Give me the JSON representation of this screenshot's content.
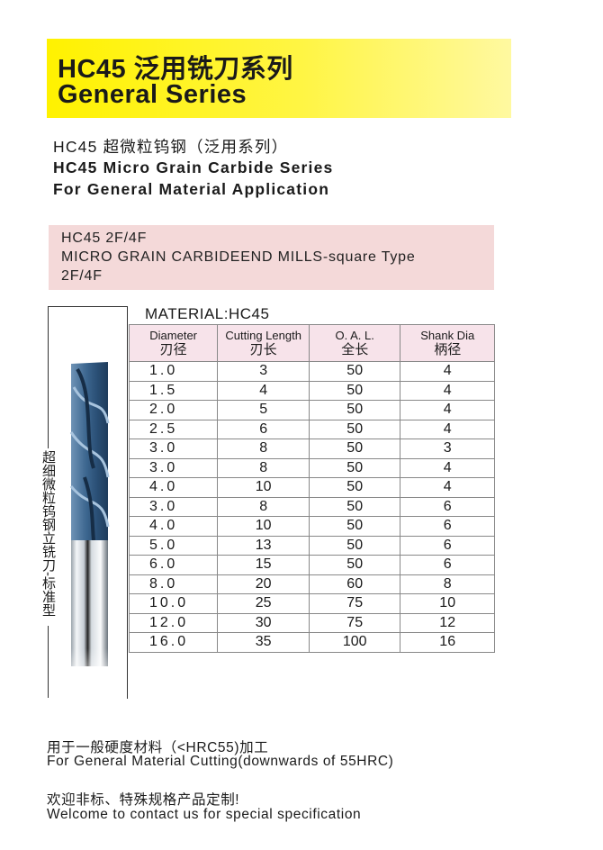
{
  "header": {
    "title_cn": "HC45 泛用铣刀系列",
    "title_en": "General Series"
  },
  "subtitle": {
    "line1": "HC45 超微粒钨钢（泛用系列）",
    "line2": "HC45 Micro Grain Carbide Series",
    "line3": "For General Material Application"
  },
  "product_box": {
    "line1": "HC45 2F/4F",
    "line2": "MICRO GRAIN CARBIDEEND MILLS-square Type",
    "line3": "2F/4F"
  },
  "side_label": "超细微粒钨钢立铣刀-标准型",
  "table": {
    "material": "MATERIAL:HC45",
    "headers": [
      {
        "en": "Diameter",
        "cn": "刃径"
      },
      {
        "en": "Cutting Length",
        "cn": "刃长"
      },
      {
        "en": "O. A. L.",
        "cn": "全长"
      },
      {
        "en": "Shank Dia",
        "cn": "柄径"
      }
    ],
    "rows": [
      [
        "1.0",
        "3",
        "50",
        "4"
      ],
      [
        "1.5",
        "4",
        "50",
        "4"
      ],
      [
        "2.0",
        "5",
        "50",
        "4"
      ],
      [
        "2.5",
        "6",
        "50",
        "4"
      ],
      [
        "3.0",
        "8",
        "50",
        "3"
      ],
      [
        "3.0",
        "8",
        "50",
        "4"
      ],
      [
        "4.0",
        "10",
        "50",
        "4"
      ],
      [
        "3.0",
        "8",
        "50",
        "6"
      ],
      [
        "4.0",
        "10",
        "50",
        "6"
      ],
      [
        "5.0",
        "13",
        "50",
        "6"
      ],
      [
        "6.0",
        "15",
        "50",
        "6"
      ],
      [
        "8.0",
        "20",
        "60",
        "8"
      ],
      [
        "10.0",
        "25",
        "75",
        "10"
      ],
      [
        "12.0",
        "30",
        "75",
        "12"
      ],
      [
        "16.0",
        "35",
        "100",
        "16"
      ]
    ]
  },
  "footer": {
    "line1": "用于一般硬度材料（<HRC55)加工",
    "line2": "For General Material Cutting(downwards of 55HRC)",
    "line3": "欢迎非标、特殊规格产品定制!",
    "line4": "Welcome to contact us for special specification"
  },
  "colors": {
    "banner": "#fff200",
    "product_box": "#f4d9d9",
    "table_header": "#f7e3ea",
    "tool_coating": "#3d6790"
  },
  "icons": {
    "product_image": "end-mill-tool"
  }
}
